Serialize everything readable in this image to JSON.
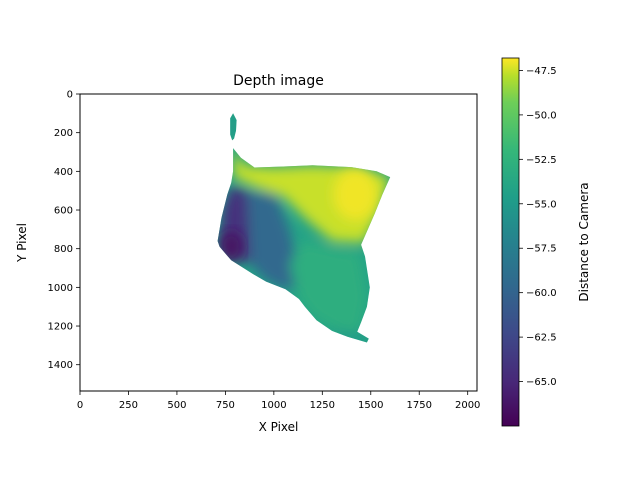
{
  "chart_data": {
    "type": "heatmap",
    "title": "Depth image",
    "xlabel": "X Pixel",
    "ylabel": "Y Pixel",
    "colorbar_label": "Distance to Camera",
    "xlim": [
      0,
      2048
    ],
    "ylim": [
      1536,
      0
    ],
    "y_inverted": true,
    "xticks": [
      0,
      250,
      500,
      750,
      1000,
      1250,
      1500,
      1750,
      2000
    ],
    "xtick_labels": [
      "0",
      "250",
      "500",
      "750",
      "1000",
      "1250",
      "1500",
      "1750",
      "2000"
    ],
    "yticks": [
      0,
      200,
      400,
      600,
      800,
      1000,
      1200,
      1400
    ],
    "ytick_labels": [
      "0",
      "200",
      "400",
      "600",
      "800",
      "1000",
      "1200",
      "1400"
    ],
    "colorbar_range": [
      -67.5,
      -46.8
    ],
    "colorbar_ticks": [
      -47.5,
      -50.0,
      -52.5,
      -55.0,
      -57.5,
      -60.0,
      -62.5,
      -65.0
    ],
    "colorbar_tick_labels": [
      "−47.5",
      "−50.0",
      "−52.5",
      "−55.0",
      "−57.5",
      "−60.0",
      "−62.5",
      "−65.0"
    ],
    "colormap": "viridis",
    "regions": [
      {
        "name": "top-spike",
        "depth": -57.0,
        "outline": [
          [
            775,
            130
          ],
          [
            795,
            100
          ],
          [
            810,
            140
          ],
          [
            805,
            190
          ],
          [
            790,
            230
          ],
          [
            770,
            220
          ]
        ]
      },
      {
        "name": "left-dark-column",
        "depth": -64.5,
        "outline": [
          [
            780,
            470
          ],
          [
            860,
            500
          ],
          [
            900,
            600
          ],
          [
            880,
            880
          ],
          [
            790,
            840
          ],
          [
            720,
            780
          ],
          [
            730,
            600
          ]
        ]
      },
      {
        "name": "center-blue-column",
        "depth": -60.5,
        "outline": [
          [
            860,
            500
          ],
          [
            1010,
            520
          ],
          [
            1080,
            700
          ],
          [
            1150,
            1000
          ],
          [
            1050,
            1010
          ],
          [
            950,
            960
          ],
          [
            880,
            880
          ]
        ]
      },
      {
        "name": "right-lower-green",
        "depth": -54.5,
        "outline": [
          [
            1150,
            760
          ],
          [
            1300,
            800
          ],
          [
            1440,
            820
          ],
          [
            1480,
            1050
          ],
          [
            1450,
            1200
          ],
          [
            1420,
            1240
          ],
          [
            1300,
            1210
          ],
          [
            1200,
            1150
          ],
          [
            1130,
            1060
          ],
          [
            1080,
            880
          ]
        ]
      },
      {
        "name": "top-yellow-band",
        "depth": -48.5,
        "outline": [
          [
            790,
            280
          ],
          [
            850,
            370
          ],
          [
            1000,
            380
          ],
          [
            1200,
            370
          ],
          [
            1400,
            380
          ],
          [
            1600,
            430
          ],
          [
            1540,
            620
          ],
          [
            1470,
            770
          ],
          [
            1300,
            760
          ],
          [
            1170,
            650
          ],
          [
            1050,
            530
          ],
          [
            900,
            480
          ],
          [
            790,
            430
          ]
        ]
      },
      {
        "name": "bottom-tail",
        "depth": -57.0,
        "outline": [
          [
            1300,
            1210
          ],
          [
            1420,
            1240
          ],
          [
            1490,
            1260
          ],
          [
            1480,
            1280
          ],
          [
            1350,
            1250
          ]
        ]
      }
    ],
    "outline": [
      [
        790,
        280
      ],
      [
        830,
        330
      ],
      [
        900,
        380
      ],
      [
        1050,
        375
      ],
      [
        1200,
        368
      ],
      [
        1400,
        378
      ],
      [
        1530,
        400
      ],
      [
        1600,
        430
      ],
      [
        1560,
        520
      ],
      [
        1520,
        620
      ],
      [
        1450,
        780
      ],
      [
        1470,
        840
      ],
      [
        1495,
        1000
      ],
      [
        1480,
        1100
      ],
      [
        1450,
        1180
      ],
      [
        1430,
        1230
      ],
      [
        1490,
        1265
      ],
      [
        1480,
        1285
      ],
      [
        1380,
        1255
      ],
      [
        1300,
        1225
      ],
      [
        1220,
        1170
      ],
      [
        1160,
        1100
      ],
      [
        1130,
        1060
      ],
      [
        1060,
        1010
      ],
      [
        960,
        970
      ],
      [
        890,
        930
      ],
      [
        780,
        860
      ],
      [
        720,
        790
      ],
      [
        710,
        760
      ],
      [
        730,
        640
      ],
      [
        760,
        520
      ],
      [
        780,
        460
      ],
      [
        790,
        400
      ]
    ],
    "spike": [
      [
        775,
        125
      ],
      [
        790,
        100
      ],
      [
        808,
        135
      ],
      [
        805,
        190
      ],
      [
        795,
        230
      ],
      [
        785,
        240
      ],
      [
        775,
        210
      ]
    ]
  }
}
